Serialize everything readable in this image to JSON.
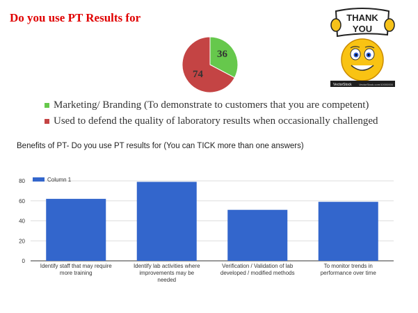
{
  "header": {
    "title": "Do you use PT Results for"
  },
  "sticker": {
    "top_text": "THANK",
    "bottom_text": "YOU",
    "brand": "VectorStock",
    "url": "VectorStock.com/10000000"
  },
  "chart_data": [
    {
      "type": "pie",
      "slices": [
        {
          "label": "Marketing/ Branding (To demonstrate to customers that you are competent)",
          "value": 36,
          "color": "#66c84c"
        },
        {
          "label": "Used to defend the quality of laboratory results when occasionally challenged",
          "value": 74,
          "color": "#c44444"
        }
      ]
    },
    {
      "type": "bar",
      "title": "Benefits of PT- Do you use PT results for (You can TICK more than one answers)",
      "categories": [
        [
          "Identify staff that may require",
          "more training"
        ],
        [
          "Identify lab activities where",
          "improvements may be",
          "needed"
        ],
        [
          "Verification / Validation of lab",
          "developed / modified methods"
        ],
        [
          "To monitor trends in",
          "performance over time"
        ]
      ],
      "series": [
        {
          "name": "Column 1",
          "values": [
            62,
            79,
            51,
            59
          ],
          "color": "#3366cc"
        }
      ],
      "ylim": [
        0,
        80
      ],
      "yticks": [
        0,
        20,
        40,
        60,
        80
      ],
      "grid": true,
      "legend": "top-left"
    }
  ]
}
